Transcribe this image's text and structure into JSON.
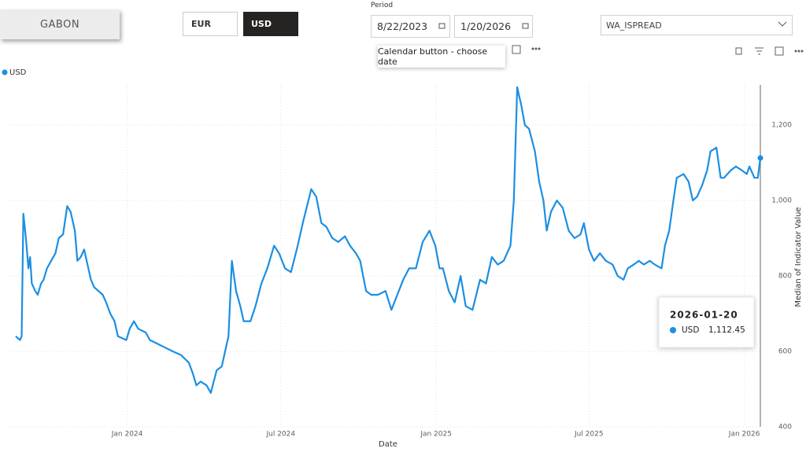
{
  "filters": {
    "country": "GABON",
    "currency_options": [
      "EUR",
      "USD"
    ],
    "period_label": "Period",
    "start_date": "8/22/2023",
    "end_date": "1/20/2026",
    "date_tooltip": "Calendar button - choose date",
    "indicator": "WA_ISPREAD"
  },
  "chart_data": {
    "type": "line",
    "x_label": "Date",
    "y_label": "Median of Indicator Value",
    "x": [
      "2023-08-22",
      "2023-08-27",
      "2023-08-29",
      "2023-08-31",
      "2023-09-03",
      "2023-09-06",
      "2023-09-08",
      "2023-09-10",
      "2023-09-14",
      "2023-09-17",
      "2023-09-21",
      "2023-09-24",
      "2023-09-28",
      "2023-10-03",
      "2023-10-08",
      "2023-10-12",
      "2023-10-17",
      "2023-10-22",
      "2023-10-26",
      "2023-10-31",
      "2023-11-03",
      "2023-11-07",
      "2023-11-11",
      "2023-11-14",
      "2023-11-19",
      "2023-11-23",
      "2023-11-28",
      "2023-12-03",
      "2023-12-07",
      "2023-12-12",
      "2023-12-17",
      "2023-12-21",
      "2023-12-31",
      "2024-01-04",
      "2024-01-09",
      "2024-01-14",
      "2024-01-23",
      "2024-01-28",
      "2024-02-06",
      "2024-02-15",
      "2024-02-24",
      "2024-03-05",
      "2024-03-14",
      "2024-03-19",
      "2024-03-23",
      "2024-03-28",
      "2024-04-04",
      "2024-04-09",
      "2024-04-16",
      "2024-04-22",
      "2024-04-30",
      "2024-05-04",
      "2024-05-09",
      "2024-05-14",
      "2024-05-18",
      "2024-05-26",
      "2024-06-01",
      "2024-06-08",
      "2024-06-15",
      "2024-06-23",
      "2024-06-29",
      "2024-07-06",
      "2024-07-13",
      "2024-07-21",
      "2024-07-27",
      "2024-08-06",
      "2024-08-12",
      "2024-08-18",
      "2024-08-24",
      "2024-08-31",
      "2024-09-07",
      "2024-09-15",
      "2024-09-21",
      "2024-09-28",
      "2024-10-03",
      "2024-10-10",
      "2024-10-16",
      "2024-10-24",
      "2024-11-02",
      "2024-11-09",
      "2024-11-16",
      "2024-11-23",
      "2024-11-30",
      "2024-12-08",
      "2024-12-16",
      "2024-12-24",
      "2024-12-31",
      "2025-01-05",
      "2025-01-09",
      "2025-01-16",
      "2025-01-23",
      "2025-01-30",
      "2025-02-05",
      "2025-02-13",
      "2025-02-22",
      "2025-03-01",
      "2025-03-08",
      "2025-03-15",
      "2025-03-22",
      "2025-03-30",
      "2025-04-03",
      "2025-04-07",
      "2025-04-12",
      "2025-04-16",
      "2025-04-21",
      "2025-04-28",
      "2025-05-03",
      "2025-05-08",
      "2025-05-12",
      "2025-05-17",
      "2025-05-24",
      "2025-05-31",
      "2025-06-07",
      "2025-06-14",
      "2025-06-21",
      "2025-06-25",
      "2025-07-01",
      "2025-07-07",
      "2025-07-14",
      "2025-07-21",
      "2025-07-29",
      "2025-08-04",
      "2025-08-11",
      "2025-08-16",
      "2025-08-23",
      "2025-08-29",
      "2025-09-04",
      "2025-09-11",
      "2025-09-17",
      "2025-09-25",
      "2025-09-29",
      "2025-10-04",
      "2025-10-09",
      "2025-10-13",
      "2025-10-21",
      "2025-10-27",
      "2025-11-01",
      "2025-11-06",
      "2025-11-12",
      "2025-11-18",
      "2025-11-22",
      "2025-11-29",
      "2025-12-04",
      "2025-12-08",
      "2025-12-16",
      "2025-12-22",
      "2025-12-29",
      "2026-01-04",
      "2026-01-07",
      "2026-01-13",
      "2026-01-17",
      "2026-01-20"
    ],
    "series": [
      {
        "name": "USD",
        "color": "#1a8fe3",
        "values": [
          640,
          630,
          640,
          965,
          900,
          820,
          850,
          780,
          760,
          750,
          780,
          790,
          820,
          840,
          860,
          900,
          910,
          985,
          970,
          920,
          840,
          850,
          870,
          840,
          790,
          770,
          760,
          750,
          730,
          700,
          680,
          640,
          630,
          660,
          680,
          660,
          650,
          630,
          620,
          610,
          600,
          590,
          570,
          540,
          510,
          520,
          510,
          490,
          550,
          560,
          640,
          840,
          760,
          720,
          680,
          680,
          720,
          780,
          820,
          880,
          860,
          820,
          810,
          880,
          940,
          1030,
          1010,
          940,
          930,
          900,
          890,
          905,
          880,
          860,
          840,
          760,
          750,
          750,
          760,
          710,
          750,
          790,
          820,
          820,
          890,
          920,
          880,
          820,
          820,
          760,
          730,
          800,
          720,
          710,
          790,
          780,
          850,
          830,
          840,
          880,
          1000,
          1300,
          1250,
          1200,
          1190,
          1130,
          1050,
          1000,
          920,
          970,
          1000,
          980,
          920,
          900,
          910,
          940,
          870,
          840,
          860,
          840,
          830,
          800,
          790,
          820,
          830,
          840,
          830,
          840,
          830,
          820,
          880,
          920,
          1000,
          1060,
          1070,
          1050,
          1000,
          1010,
          1040,
          1080,
          1130,
          1140,
          1060,
          1060,
          1080,
          1090,
          1080,
          1070,
          1090,
          1060,
          1060,
          1112.45
        ]
      }
    ],
    "tooltip_label": "1,112.45",
    "xlim": [
      "2023-08-22",
      "2026-01-20"
    ],
    "xticks": [
      {
        "value": "2024-01",
        "label": "Jan 2024"
      },
      {
        "value": "2024-07",
        "label": "Jul 2024"
      },
      {
        "value": "2025-01",
        "label": "Jan 2025"
      },
      {
        "value": "2025-07",
        "label": "Jul 2025"
      },
      {
        "value": "2026-01",
        "label": "Jan 2026"
      }
    ],
    "ylim": [
      400,
      1300
    ],
    "yticks": [
      400,
      600,
      800,
      {
        "value": 1000,
        "label": "1,000"
      },
      {
        "value": 1200,
        "label": "1,200"
      }
    ],
    "grid": true,
    "legend": "top-left"
  }
}
